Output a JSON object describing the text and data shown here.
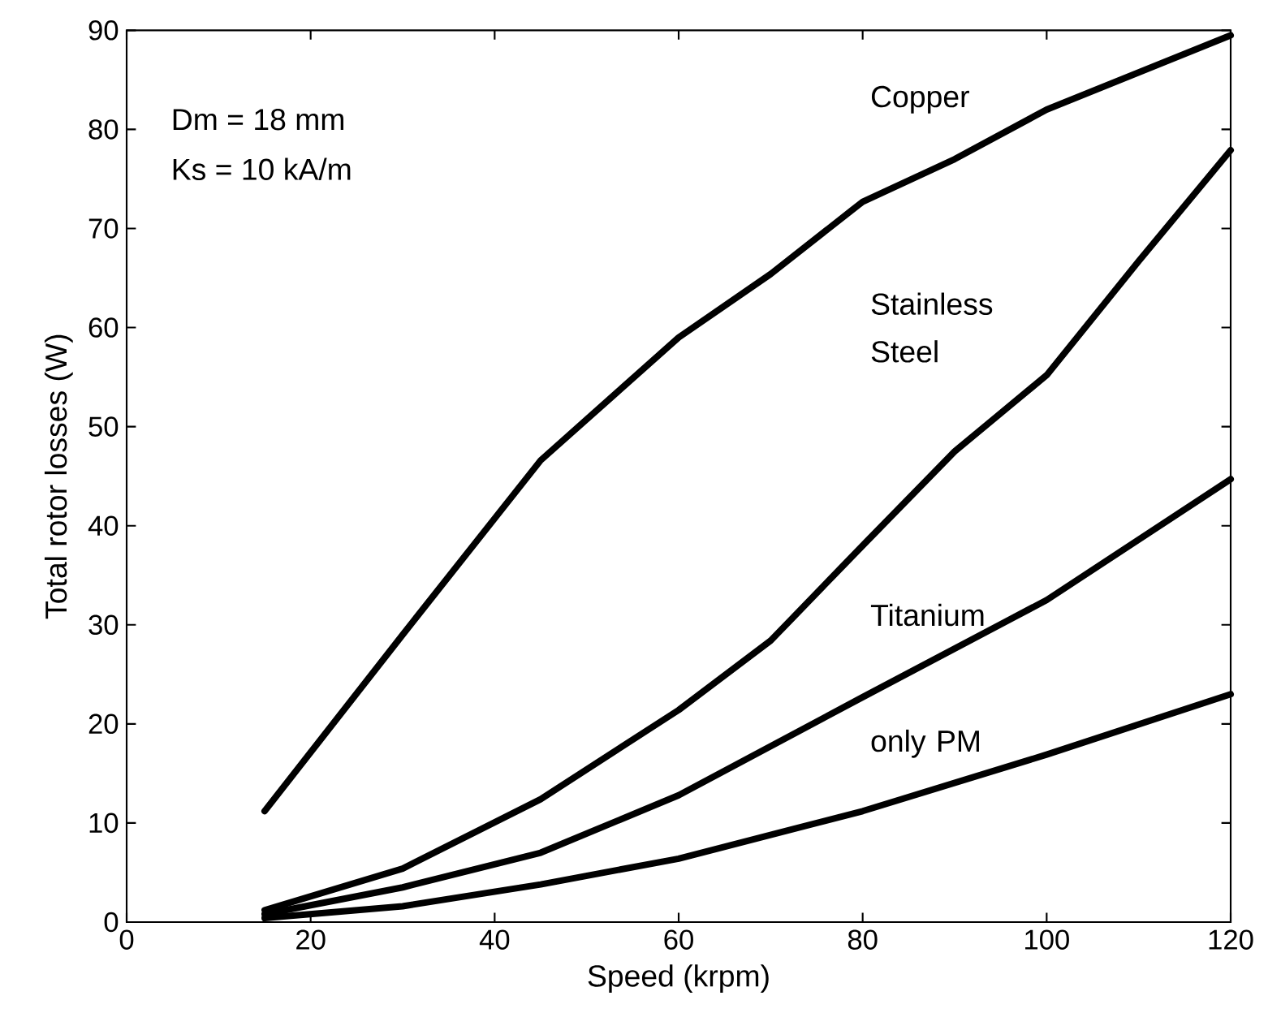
{
  "chart_data": {
    "type": "line",
    "xlabel": "Speed  (krpm)",
    "ylabel": "Total rotor losses (W)",
    "annotations": [
      "Dm = 18 mm",
      "Ks = 10 kA/m"
    ],
    "xlim": [
      0,
      120
    ],
    "xticks": [
      0,
      20,
      40,
      60,
      80,
      100,
      120
    ],
    "ylim": [
      0,
      90
    ],
    "yticks": [
      0,
      10,
      20,
      30,
      40,
      50,
      60,
      70,
      80,
      90
    ],
    "grid": false,
    "legend": false,
    "marker": "none",
    "line_style": "solid",
    "series": [
      {
        "name": "Copper",
        "color": "#000000",
        "x": [
          15,
          30,
          45,
          60,
          70,
          80,
          90,
          100,
          120
        ],
        "values": [
          11.2,
          29,
          46.6,
          59,
          65.4,
          72.7,
          77,
          82,
          89.5
        ]
      },
      {
        "name": "Stainless Steel",
        "color": "#000000",
        "x": [
          15,
          30,
          45,
          60,
          70,
          80,
          90,
          100,
          110,
          120
        ],
        "values": [
          1.2,
          5.4,
          12.4,
          21.4,
          28.4,
          38,
          47.5,
          55.2,
          66.7,
          77.9
        ]
      },
      {
        "name": "Titanium",
        "color": "#000000",
        "x": [
          15,
          30,
          45,
          60,
          80,
          100,
          120
        ],
        "values": [
          0.8,
          3.5,
          7,
          12.8,
          22.7,
          32.5,
          44.7
        ]
      },
      {
        "name": "only PM",
        "color": "#000000",
        "x": [
          15,
          30,
          45,
          60,
          80,
          100,
          120
        ],
        "values": [
          0.4,
          1.6,
          3.8,
          6.4,
          11.2,
          16.9,
          23
        ]
      }
    ]
  }
}
